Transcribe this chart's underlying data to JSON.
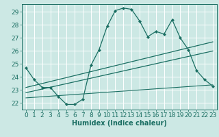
{
  "title": "",
  "xlabel": "Humidex (Indice chaleur)",
  "bg_color": "#cce8e4",
  "grid_color": "#ffffff",
  "line_color": "#1a6e62",
  "xlim": [
    -0.5,
    23.5
  ],
  "ylim": [
    21.5,
    29.6
  ],
  "xticks": [
    0,
    1,
    2,
    3,
    4,
    5,
    6,
    7,
    8,
    9,
    10,
    11,
    12,
    13,
    14,
    15,
    16,
    17,
    18,
    19,
    20,
    21,
    22,
    23
  ],
  "yticks": [
    22,
    23,
    24,
    25,
    26,
    27,
    28,
    29
  ],
  "zigzag_x": [
    0,
    1,
    2,
    3,
    4,
    5,
    6,
    7,
    8,
    9,
    10,
    11,
    12,
    13,
    14,
    15,
    16,
    17,
    18,
    19,
    20,
    21,
    22,
    23
  ],
  "zigzag_y": [
    24.7,
    23.8,
    23.2,
    23.2,
    22.5,
    21.9,
    21.9,
    22.3,
    24.9,
    26.1,
    27.9,
    29.1,
    29.3,
    29.2,
    28.3,
    27.1,
    27.5,
    27.3,
    28.4,
    27.0,
    26.1,
    24.5,
    23.8,
    23.3
  ],
  "line1_x": [
    0,
    23
  ],
  "line1_y": [
    23.2,
    26.7
  ],
  "line2_x": [
    0,
    23
  ],
  "line2_y": [
    22.8,
    26.0
  ],
  "line3_x": [
    0,
    23
  ],
  "line3_y": [
    22.4,
    23.4
  ],
  "xlabel_fontsize": 7,
  "tick_fontsize": 6.5
}
